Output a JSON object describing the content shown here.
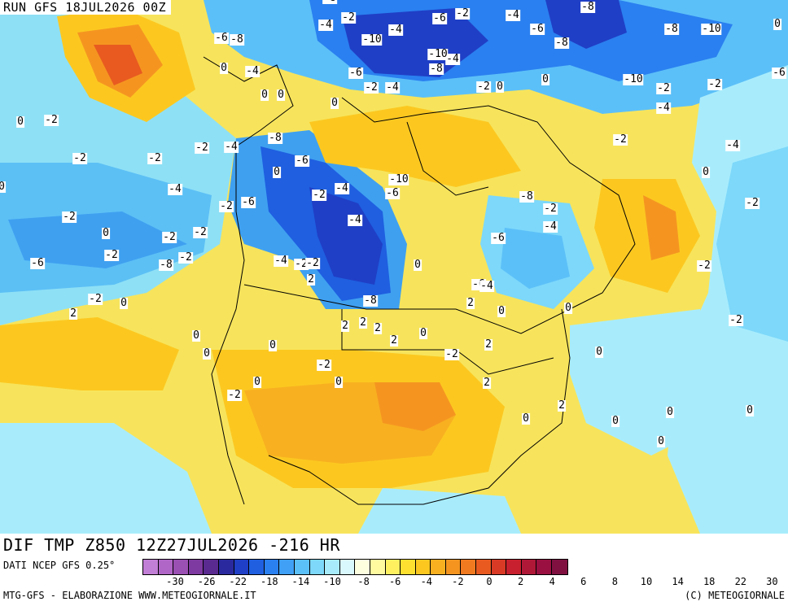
{
  "header": {
    "run_label": "RUN GFS 18JUL2026 00Z"
  },
  "footer": {
    "product": "DIF TMP Z850 12Z27JUL2026 -216 HR",
    "source": "DATI NCEP GFS 0.25°",
    "left_credit": "MTG-GFS - ELABORAZIONE WWW.METEOGIORNALE.IT",
    "right_credit": "(C) METEOGIORNALE"
  },
  "legend": {
    "colors": [
      "#c27fd6",
      "#b066c6",
      "#9a4fb3",
      "#7e3aa0",
      "#5a2a90",
      "#2a2a9e",
      "#1f3fc6",
      "#1f5fe0",
      "#2a80f0",
      "#3fa0f5",
      "#5cc0f8",
      "#7dd8fa",
      "#a8ecfc",
      "#d8f8fd",
      "#fdfde0",
      "#fffaa0",
      "#fff060",
      "#fde030",
      "#fcc820",
      "#f8b020",
      "#f59520",
      "#f07a20",
      "#e85a20",
      "#d83a25",
      "#c8202e",
      "#b01838",
      "#9a1040",
      "#801040"
    ],
    "ticks": [
      "-30",
      "-26",
      "-22",
      "-18",
      "-14",
      "-10",
      "-8",
      "-6",
      "-4",
      "-2",
      "0",
      "2",
      "4",
      "6",
      "8",
      "10",
      "14",
      "18",
      "22",
      "30"
    ]
  },
  "map_labels": [
    "-8",
    "-2",
    "-4",
    "-8",
    "-6",
    "-8",
    "-10",
    "-4",
    "-6",
    "-8",
    "-10",
    "0",
    "-6",
    "-8",
    "-4",
    "-10",
    "-2",
    "-6",
    "0",
    "-2",
    "-4",
    "-6",
    "-2",
    "-4",
    "-2",
    "0",
    "-2",
    "-4",
    "-10",
    "-8",
    "-4",
    "0",
    "0",
    "0",
    "0",
    "0",
    "-2",
    "-2",
    "-4",
    "-8",
    "-6",
    "-2",
    "-2",
    "0",
    "-2",
    "-4",
    "-6",
    "-10",
    "-2",
    "-4",
    "0",
    "-2",
    "-8",
    "-4",
    "-6",
    "-2",
    "-4",
    "-6",
    "-2",
    "-4",
    "-2",
    "0",
    "-2",
    "-2",
    "0",
    "-2",
    "-6",
    "-8",
    "-2",
    "-4",
    "-2",
    "2",
    "0",
    "-2",
    "-2",
    "-6",
    "-4",
    "-8",
    "2",
    "0",
    "0",
    "2",
    "-2",
    "0",
    "2",
    "2",
    "2",
    "2",
    "0",
    "0",
    "0",
    "-2",
    "2",
    "0",
    "-2",
    "0",
    "-2",
    "0",
    "0",
    "-2",
    "2",
    "2",
    "0",
    "0",
    "0",
    "0",
    "0"
  ]
}
